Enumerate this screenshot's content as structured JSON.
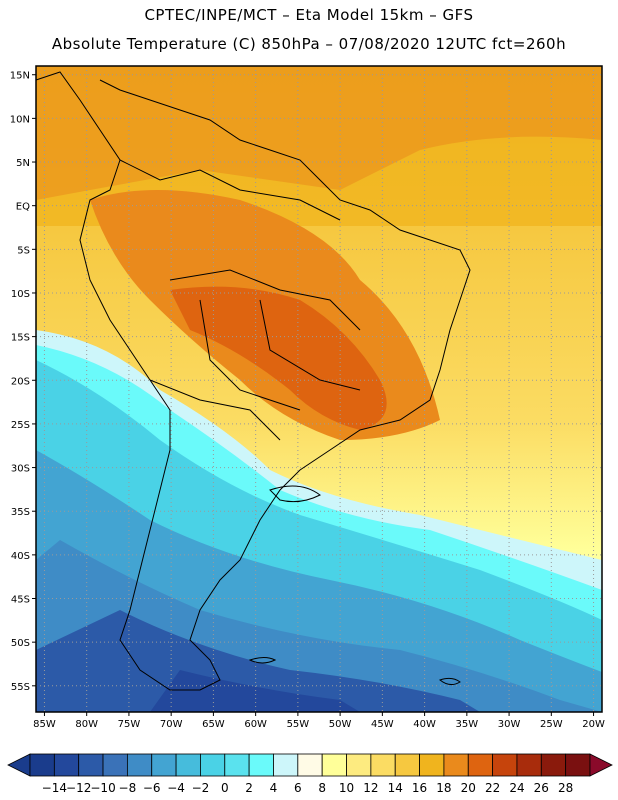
{
  "header": {
    "line1": "CPTEC/INPE/MCT –  Eta Model 15km – GFS",
    "line2": "Absolute Temperature (C) 850hPa – 07/08/2020 12UTC fct=260h"
  },
  "axes": {
    "lat_labels": [
      "15N",
      "10N",
      "5N",
      "EQ",
      "5S",
      "10S",
      "15S",
      "20S",
      "25S",
      "30S",
      "35S",
      "40S",
      "45S",
      "50S",
      "55S"
    ],
    "lon_labels": [
      "85W",
      "80W",
      "75W",
      "70W",
      "65W",
      "60W",
      "55W",
      "50W",
      "45W",
      "40W",
      "35W",
      "30W",
      "25W",
      "20W"
    ]
  },
  "colorbar": {
    "labels": [
      "-14",
      "-12",
      "-10",
      "-8",
      "-6",
      "-4",
      "-2",
      "0",
      "2",
      "4",
      "6",
      "8",
      "10",
      "12",
      "14",
      "16",
      "18",
      "20",
      "22",
      "24",
      "26",
      "28"
    ],
    "colors": [
      "#1a3c8c",
      "#23489c",
      "#2c5aa8",
      "#3a72b8",
      "#3f8cc6",
      "#43a4d2",
      "#46bcdc",
      "#4ad2e6",
      "#5ae2ee",
      "#6afafa",
      "#cdf6fa",
      "#fffbe6",
      "#ffff99",
      "#fdeb80",
      "#fbdc63",
      "#f6c840",
      "#f0b41e",
      "#ea8a1c",
      "#de6410",
      "#c6440c",
      "#a82c0c",
      "#8a1a0c",
      "#7a1010"
    ]
  },
  "map": {
    "lat_range": [
      -58,
      16
    ],
    "lon_range": [
      -86,
      -19
    ]
  }
}
